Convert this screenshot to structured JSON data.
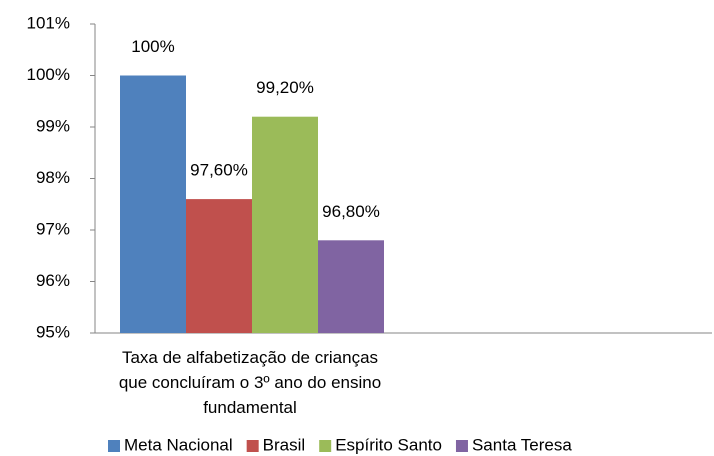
{
  "chart_data": {
    "type": "bar",
    "categories": [
      "Taxa de alfabetização de crianças que concluíram o 3º ano do ensino fundamental"
    ],
    "series": [
      {
        "name": "Meta Nacional",
        "color": "#4f81bd",
        "values": [
          100
        ],
        "value_labels": [
          "100%"
        ]
      },
      {
        "name": "Brasil",
        "color": "#c0504d",
        "values": [
          97.6
        ],
        "value_labels": [
          "97,60%"
        ]
      },
      {
        "name": "Espírito Santo",
        "color": "#9bbb59",
        "values": [
          99.2
        ],
        "value_labels": [
          "99,20%"
        ]
      },
      {
        "name": "Santa Teresa",
        "color": "#8064a2",
        "values": [
          96.8
        ],
        "value_labels": [
          "96,80%"
        ]
      }
    ],
    "ylim": [
      95,
      101
    ],
    "yticks": [
      {
        "value": 95,
        "label": "95%"
      },
      {
        "value": 96,
        "label": "96%"
      },
      {
        "value": 97,
        "label": "97%"
      },
      {
        "value": 98,
        "label": "98%"
      },
      {
        "value": 99,
        "label": "99%"
      },
      {
        "value": 100,
        "label": "100%"
      },
      {
        "value": 101,
        "label": "101%"
      }
    ],
    "legend": "bottom"
  }
}
